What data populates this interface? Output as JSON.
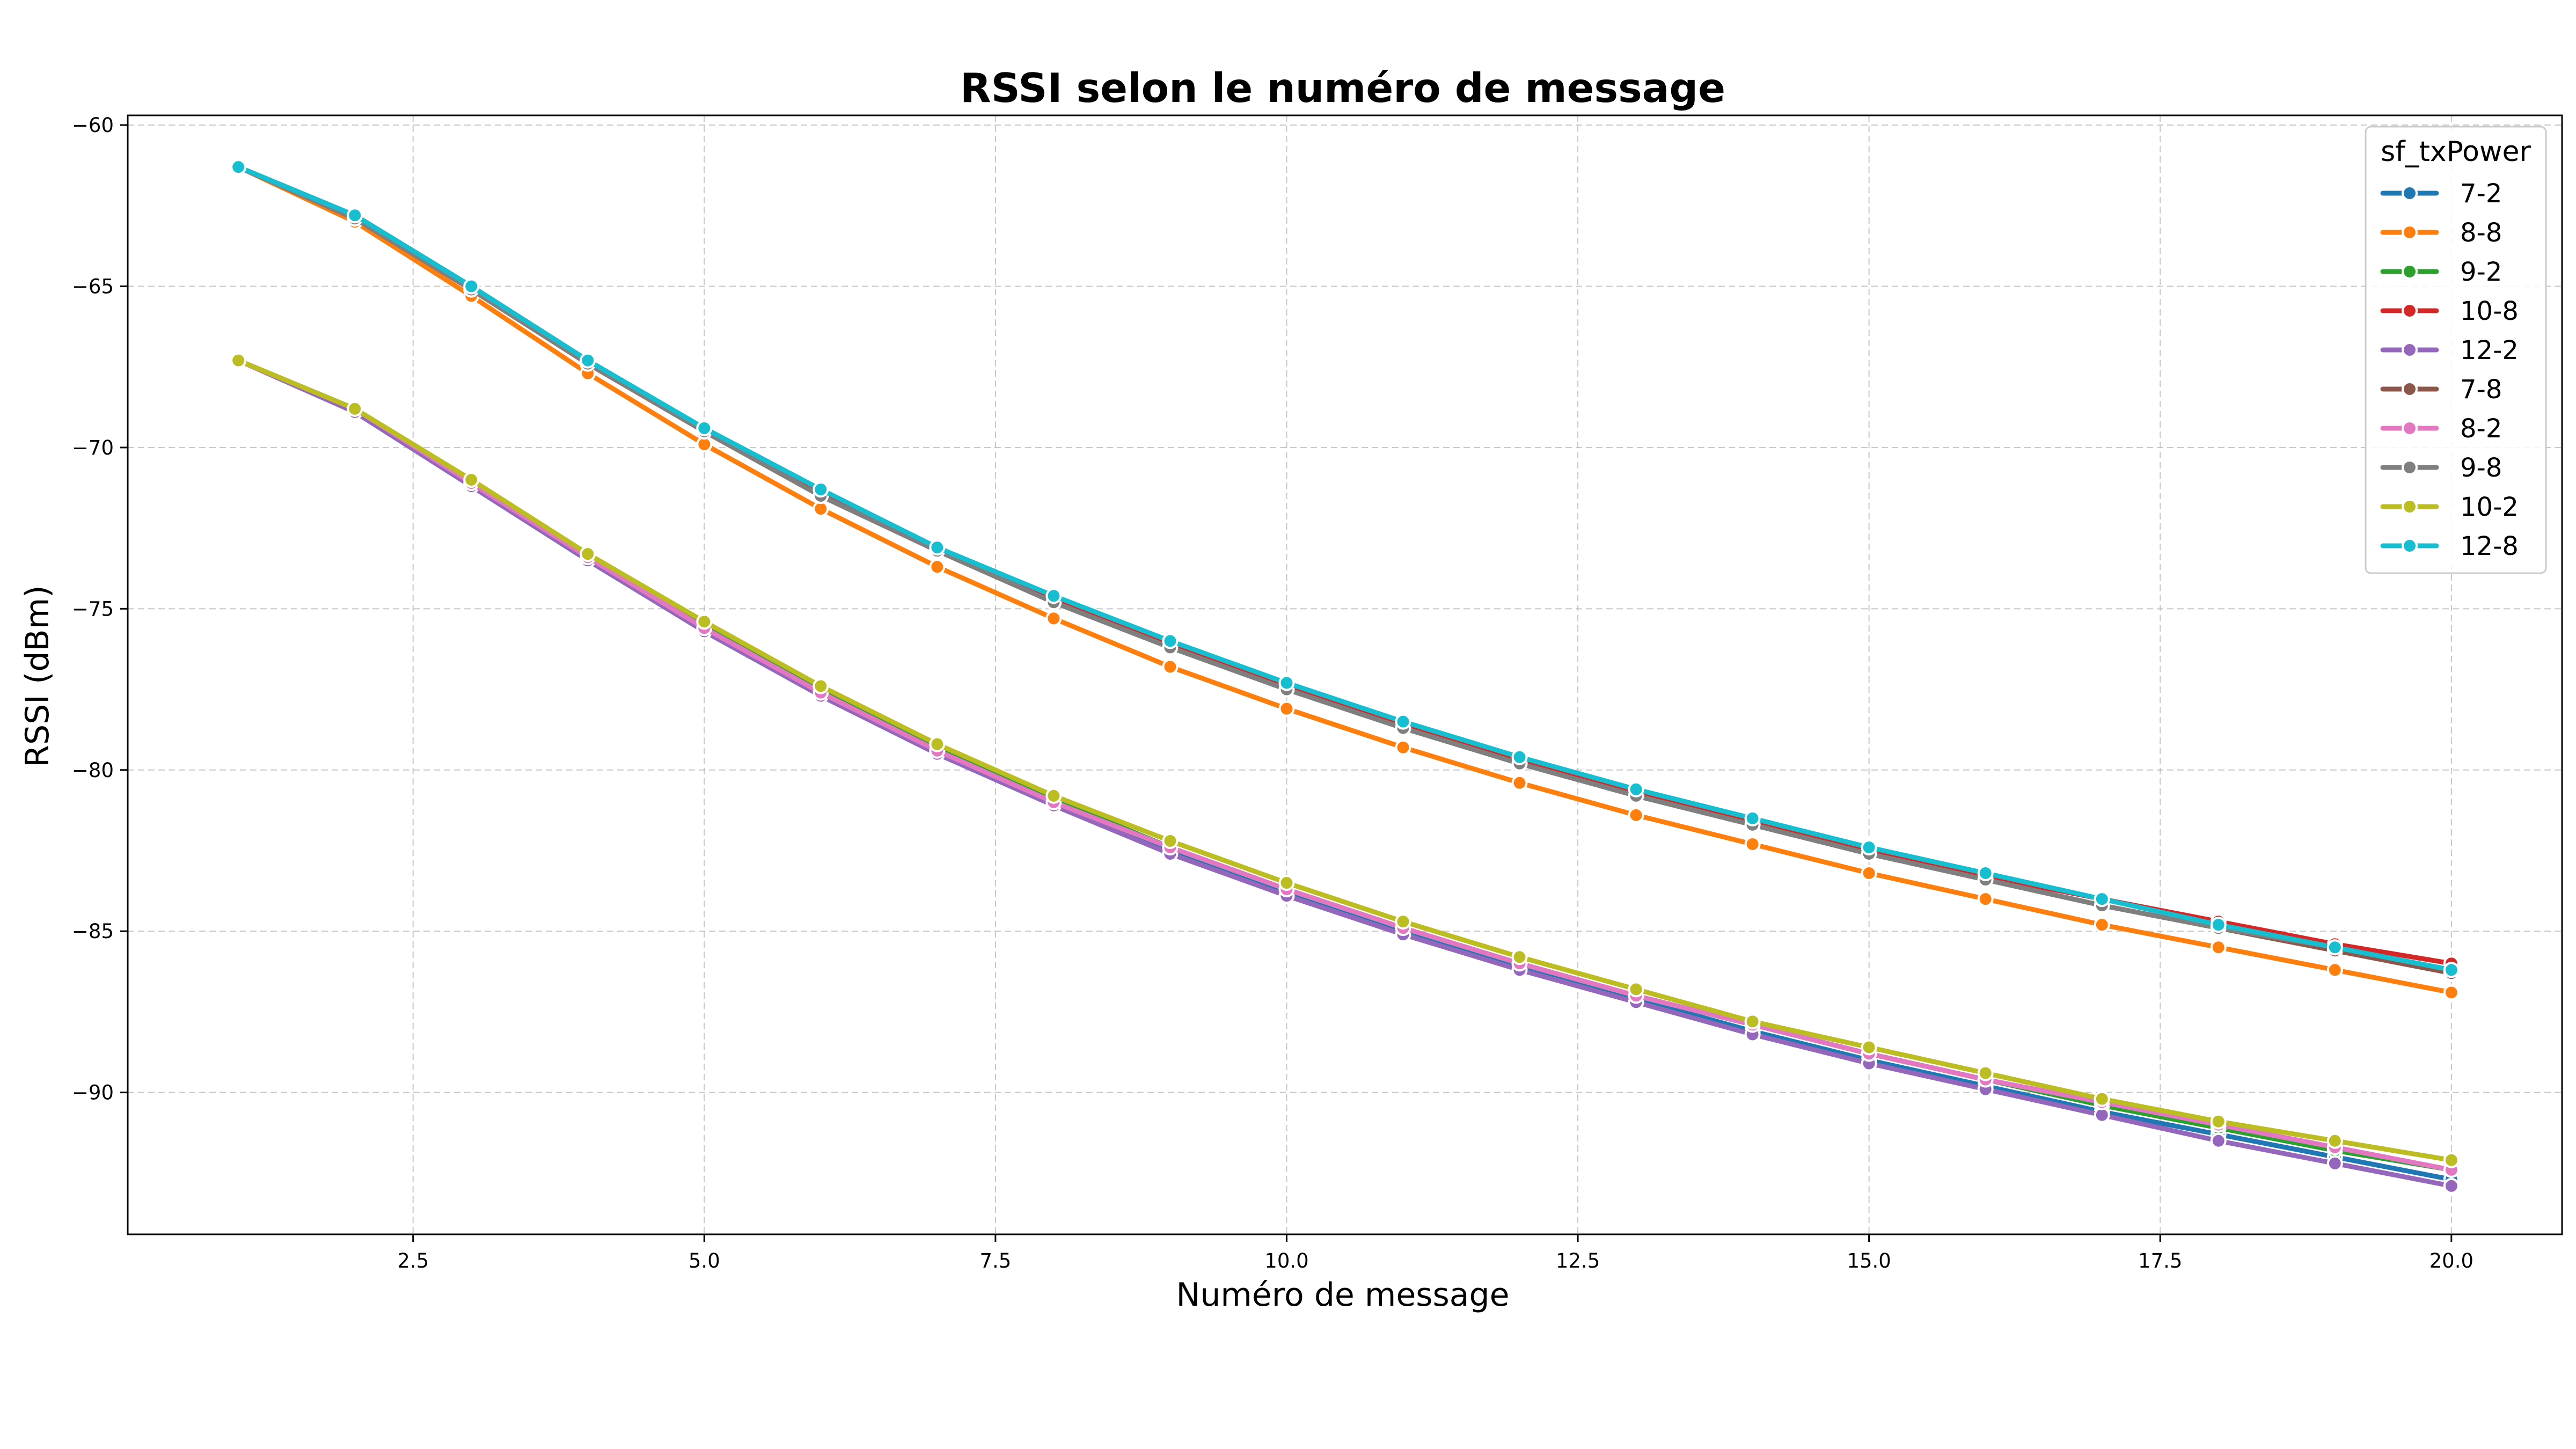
{
  "chart_data": {
    "type": "line",
    "title": "RSSI selon le numéro de message",
    "xlabel": "Numéro de message",
    "ylabel": "RSSI (dBm)",
    "xlim": [
      0.05,
      20.95
    ],
    "ylim": [
      -94.4,
      -59.7
    ],
    "xticks": [
      2.5,
      5.0,
      7.5,
      10.0,
      12.5,
      15.0,
      17.5,
      20.0
    ],
    "xtick_labels": [
      "2.5",
      "5.0",
      "7.5",
      "10.0",
      "12.5",
      "15.0",
      "17.5",
      "20.0"
    ],
    "yticks": [
      -90,
      -85,
      -80,
      -75,
      -70,
      -65,
      -60
    ],
    "ytick_labels": [
      "−90",
      "−85",
      "−80",
      "−75",
      "−70",
      "−65",
      "−60"
    ],
    "grid": true,
    "legend": {
      "title": "sf_txPower",
      "placement": "top-right"
    },
    "x": [
      1,
      2,
      3,
      4,
      5,
      6,
      7,
      8,
      9,
      10,
      11,
      12,
      13,
      14,
      15,
      16,
      17,
      18,
      19,
      20
    ],
    "series": [
      {
        "name": "7-2",
        "color": "#1f77b4",
        "values": [
          -67.3,
          -68.8,
          -71.1,
          -73.4,
          -75.6,
          -77.6,
          -79.4,
          -81.0,
          -82.5,
          -83.8,
          -85.0,
          -86.1,
          -87.1,
          -88.1,
          -89.0,
          -89.8,
          -90.6,
          -91.3,
          -92.0,
          -92.7
        ]
      },
      {
        "name": "8-8",
        "color": "#ff7f0e",
        "values": [
          -61.3,
          -63.0,
          -65.3,
          -67.7,
          -69.9,
          -71.9,
          -73.7,
          -75.3,
          -76.8,
          -78.1,
          -79.3,
          -80.4,
          -81.4,
          -82.3,
          -83.2,
          -84.0,
          -84.8,
          -85.5,
          -86.2,
          -86.9
        ]
      },
      {
        "name": "9-2",
        "color": "#2ca02c",
        "values": [
          -67.3,
          -68.8,
          -71.1,
          -73.3,
          -75.5,
          -77.5,
          -79.3,
          -80.9,
          -82.4,
          -83.7,
          -84.9,
          -86.0,
          -87.0,
          -87.9,
          -88.8,
          -89.6,
          -90.4,
          -91.1,
          -91.8,
          -92.4
        ]
      },
      {
        "name": "10-8",
        "color": "#d62728",
        "values": [
          -61.3,
          -62.8,
          -65.0,
          -67.3,
          -69.5,
          -71.4,
          -73.2,
          -74.7,
          -76.1,
          -77.4,
          -78.6,
          -79.7,
          -80.7,
          -81.6,
          -82.5,
          -83.3,
          -84.0,
          -84.7,
          -85.4,
          -86.0
        ]
      },
      {
        "name": "12-2",
        "color": "#9467bd",
        "values": [
          -67.3,
          -68.9,
          -71.2,
          -73.5,
          -75.7,
          -77.7,
          -79.5,
          -81.1,
          -82.6,
          -83.9,
          -85.1,
          -86.2,
          -87.2,
          -88.2,
          -89.1,
          -89.9,
          -90.7,
          -91.5,
          -92.2,
          -92.9
        ]
      },
      {
        "name": "7-8",
        "color": "#8c564b",
        "values": [
          -61.3,
          -62.9,
          -65.1,
          -67.4,
          -69.5,
          -71.5,
          -73.2,
          -74.8,
          -76.2,
          -77.5,
          -78.7,
          -79.8,
          -80.8,
          -81.7,
          -82.6,
          -83.4,
          -84.2,
          -84.9,
          -85.6,
          -86.3
        ]
      },
      {
        "name": "8-2",
        "color": "#e377c2",
        "values": [
          -67.3,
          -68.8,
          -71.1,
          -73.4,
          -75.6,
          -77.6,
          -79.4,
          -81.0,
          -82.4,
          -83.7,
          -84.9,
          -86.0,
          -87.0,
          -87.9,
          -88.8,
          -89.6,
          -90.3,
          -91.0,
          -91.7,
          -92.4
        ]
      },
      {
        "name": "9-8",
        "color": "#7f7f7f",
        "values": [
          -61.3,
          -62.9,
          -65.1,
          -67.4,
          -69.5,
          -71.5,
          -73.2,
          -74.8,
          -76.2,
          -77.5,
          -78.7,
          -79.8,
          -80.8,
          -81.7,
          -82.6,
          -83.4,
          -84.2,
          -84.9,
          -85.5,
          -86.2
        ]
      },
      {
        "name": "10-2",
        "color": "#bcbd22",
        "values": [
          -67.3,
          -68.8,
          -71.0,
          -73.3,
          -75.4,
          -77.4,
          -79.2,
          -80.8,
          -82.2,
          -83.5,
          -84.7,
          -85.8,
          -86.8,
          -87.8,
          -88.6,
          -89.4,
          -90.2,
          -90.9,
          -91.5,
          -92.1
        ]
      },
      {
        "name": "12-8",
        "color": "#17becf",
        "values": [
          -61.3,
          -62.8,
          -65.0,
          -67.3,
          -69.4,
          -71.3,
          -73.1,
          -74.6,
          -76.0,
          -77.3,
          -78.5,
          -79.6,
          -80.6,
          -81.5,
          -82.4,
          -83.2,
          -84.0,
          -84.8,
          -85.5,
          -86.2
        ]
      }
    ]
  }
}
